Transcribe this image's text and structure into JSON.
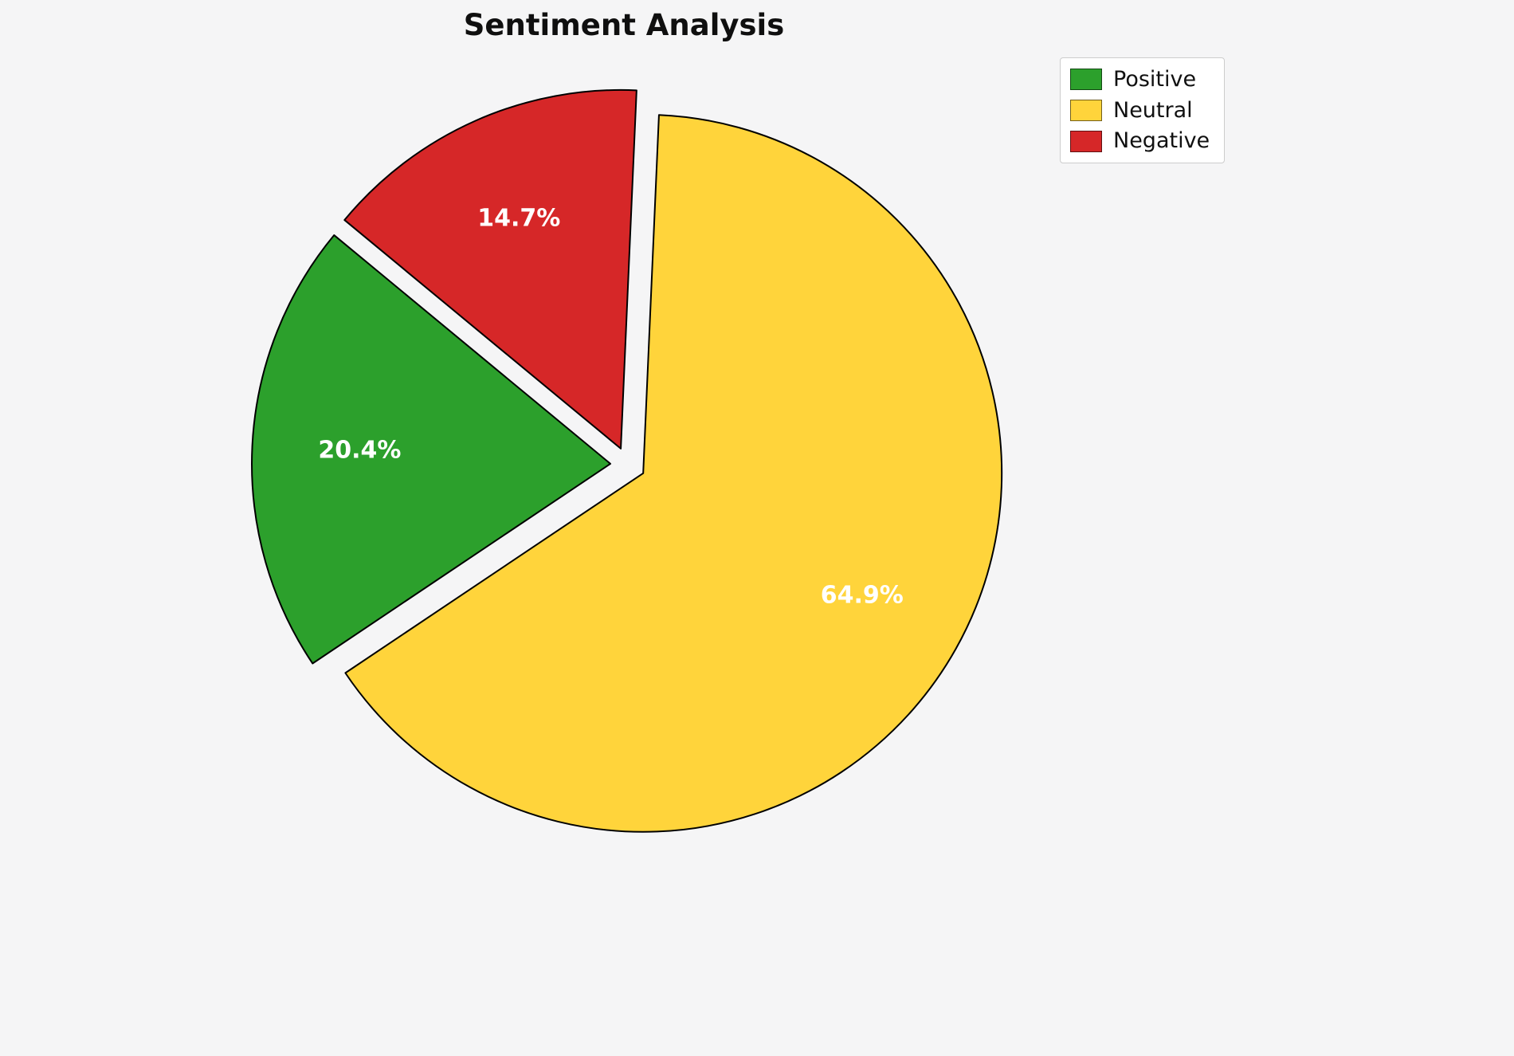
{
  "chart_data": {
    "type": "pie",
    "title": "Sentiment Analysis",
    "slices": [
      {
        "label": "Positive",
        "value": 20.4,
        "pct_label": "20.4%",
        "color": "#2ca02c"
      },
      {
        "label": "Neutral",
        "value": 64.9,
        "pct_label": "64.9%",
        "color": "#ffd43b"
      },
      {
        "label": "Negative",
        "value": 14.7,
        "pct_label": "14.7%",
        "color": "#d62728"
      }
    ],
    "start_angle": 140.4,
    "counterclockwise": true,
    "exploded": true,
    "edge_color": "#000000",
    "label_color": "#ffffff",
    "legend_position": "upper right",
    "background_color": "#f5f5f6"
  }
}
